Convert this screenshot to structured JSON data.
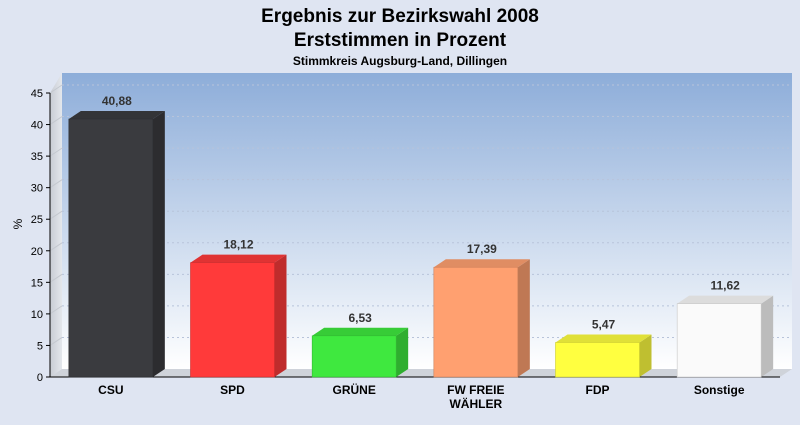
{
  "chart_data": {
    "type": "bar",
    "title": "Ergebnis zur Bezirkswahl 2008",
    "title_line2": "Erststimmen in Prozent",
    "subtitle": "Stimmkreis Augsburg-Land, Dillingen",
    "ylabel": "%",
    "ylim": [
      0,
      45
    ],
    "yticks": [
      0,
      5,
      10,
      15,
      20,
      25,
      30,
      35,
      40,
      45
    ],
    "categories": [
      "CSU",
      "SPD",
      "GRÜNE",
      "FW FREIE WÄHLER",
      "FDP",
      "Sonstige"
    ],
    "category_lines": [
      [
        "CSU"
      ],
      [
        "SPD"
      ],
      [
        "GRÜNE"
      ],
      [
        "FW FREIE",
        "WÄHLER"
      ],
      [
        "FDP"
      ],
      [
        "Sonstige"
      ]
    ],
    "values": [
      40.88,
      18.12,
      6.53,
      17.39,
      5.47,
      11.62
    ],
    "value_labels": [
      "40,88",
      "18,12",
      "6,53",
      "17,39",
      "5,47",
      "11,62"
    ],
    "colors": [
      "#3a3b3f",
      "#ff3a3a",
      "#3fe83f",
      "#ffa070",
      "#ffff40",
      "#fafafa"
    ],
    "grid": true,
    "legend": "none"
  }
}
